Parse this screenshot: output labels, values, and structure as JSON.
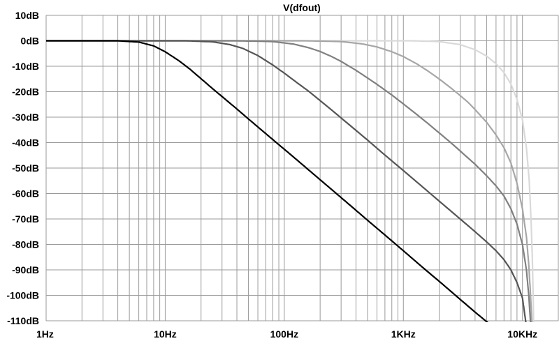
{
  "chart_data": {
    "type": "line",
    "title": "V(dfout)",
    "x_scale": "log",
    "xlim": [
      1,
      20000
    ],
    "ylim": [
      -110,
      10
    ],
    "grid": true,
    "x_tick_labels": [
      {
        "value": 1,
        "label": "1Hz"
      },
      {
        "value": 10,
        "label": "10Hz"
      },
      {
        "value": 100,
        "label": "100Hz"
      },
      {
        "value": 1000,
        "label": "1KHz"
      },
      {
        "value": 10000,
        "label": "10KHz"
      }
    ],
    "y_tick_labels": [
      {
        "value": 10,
        "label": "10dB"
      },
      {
        "value": 0,
        "label": "0dB"
      },
      {
        "value": -10,
        "label": "-10dB"
      },
      {
        "value": -20,
        "label": "-20dB"
      },
      {
        "value": -30,
        "label": "-30dB"
      },
      {
        "value": -40,
        "label": "-40dB"
      },
      {
        "value": -50,
        "label": "-50dB"
      },
      {
        "value": -60,
        "label": "-60dB"
      },
      {
        "value": -70,
        "label": "-70dB"
      },
      {
        "value": -80,
        "label": "-80dB"
      },
      {
        "value": -90,
        "label": "-90dB"
      },
      {
        "value": -100,
        "label": "-100dB"
      },
      {
        "value": -110,
        "label": "-110dB"
      }
    ],
    "series": [
      {
        "color": "#000000",
        "points": [
          [
            1,
            0
          ],
          [
            4,
            0
          ],
          [
            6,
            -0.5
          ],
          [
            8,
            -2
          ],
          [
            10,
            -4.3
          ],
          [
            13,
            -7.8
          ],
          [
            16,
            -11
          ],
          [
            20,
            -14.9
          ],
          [
            25,
            -18.8
          ],
          [
            30,
            -21.9
          ],
          [
            40,
            -26.8
          ],
          [
            50,
            -30.7
          ],
          [
            70,
            -36.5
          ],
          [
            100,
            -42.6
          ],
          [
            150,
            -49.6
          ],
          [
            200,
            -54.6
          ],
          [
            300,
            -61.6
          ],
          [
            400,
            -66.6
          ],
          [
            500,
            -70.5
          ],
          [
            700,
            -76.3
          ],
          [
            1000,
            -82.5
          ],
          [
            1500,
            -89.6
          ],
          [
            2000,
            -94.5
          ],
          [
            3000,
            -101.6
          ],
          [
            4000,
            -106.6
          ],
          [
            5200,
            -111
          ]
        ]
      },
      {
        "color": "#555555",
        "points": [
          [
            1,
            0
          ],
          [
            15,
            0
          ],
          [
            25,
            -0.4
          ],
          [
            35,
            -1.5
          ],
          [
            45,
            -3
          ],
          [
            60,
            -5.8
          ],
          [
            80,
            -9.5
          ],
          [
            100,
            -12.7
          ],
          [
            130,
            -16.7
          ],
          [
            160,
            -19.8
          ],
          [
            200,
            -23.5
          ],
          [
            250,
            -27.2
          ],
          [
            300,
            -30.3
          ],
          [
            400,
            -35.2
          ],
          [
            500,
            -39
          ],
          [
            700,
            -44.9
          ],
          [
            1000,
            -51
          ],
          [
            1500,
            -58
          ],
          [
            2000,
            -63
          ],
          [
            3000,
            -70
          ],
          [
            4000,
            -75
          ],
          [
            5000,
            -79
          ],
          [
            6000,
            -82.5
          ],
          [
            7000,
            -86
          ],
          [
            8000,
            -90
          ],
          [
            9000,
            -95
          ],
          [
            10000,
            -101
          ],
          [
            10700,
            -111
          ]
        ]
      },
      {
        "color": "#808080",
        "points": [
          [
            1,
            0
          ],
          [
            40,
            0
          ],
          [
            80,
            -0.3
          ],
          [
            120,
            -1.3
          ],
          [
            160,
            -2.7
          ],
          [
            200,
            -4.2
          ],
          [
            250,
            -6.2
          ],
          [
            300,
            -8.1
          ],
          [
            400,
            -11.6
          ],
          [
            500,
            -14.6
          ],
          [
            600,
            -17.1
          ],
          [
            800,
            -21.3
          ],
          [
            1000,
            -24.8
          ],
          [
            1300,
            -29
          ],
          [
            1600,
            -32.4
          ],
          [
            2000,
            -36.2
          ],
          [
            2500,
            -40
          ],
          [
            3000,
            -43.3
          ],
          [
            4000,
            -48.5
          ],
          [
            5000,
            -53
          ],
          [
            6000,
            -57
          ],
          [
            7000,
            -61
          ],
          [
            8000,
            -66
          ],
          [
            9000,
            -72
          ],
          [
            10000,
            -80
          ],
          [
            10800,
            -90
          ],
          [
            11300,
            -100
          ],
          [
            11700,
            -111
          ]
        ]
      },
      {
        "color": "#a6a6a6",
        "points": [
          [
            1,
            0
          ],
          [
            150,
            0
          ],
          [
            300,
            -0.3
          ],
          [
            450,
            -1.2
          ],
          [
            600,
            -2.4
          ],
          [
            800,
            -4.3
          ],
          [
            1000,
            -6.2
          ],
          [
            1300,
            -9.1
          ],
          [
            1600,
            -11.8
          ],
          [
            2000,
            -15
          ],
          [
            2500,
            -18.5
          ],
          [
            3000,
            -21.5
          ],
          [
            3500,
            -24.2
          ],
          [
            4000,
            -27
          ],
          [
            5000,
            -32
          ],
          [
            6000,
            -37
          ],
          [
            7000,
            -42
          ],
          [
            8000,
            -48
          ],
          [
            9000,
            -56
          ],
          [
            10000,
            -66
          ],
          [
            10800,
            -77
          ],
          [
            11300,
            -88
          ],
          [
            11700,
            -100
          ],
          [
            12000,
            -111
          ]
        ]
      },
      {
        "color": "#d9d9d9",
        "points": [
          [
            1,
            0
          ],
          [
            1200,
            0
          ],
          [
            2000,
            -0.3
          ],
          [
            3000,
            -1.5
          ],
          [
            4000,
            -3.5
          ],
          [
            5000,
            -6
          ],
          [
            6000,
            -9
          ],
          [
            7000,
            -12.5
          ],
          [
            8000,
            -17
          ],
          [
            9000,
            -23
          ],
          [
            10000,
            -31
          ],
          [
            10800,
            -42
          ],
          [
            11400,
            -55
          ],
          [
            11800,
            -70
          ],
          [
            12100,
            -85
          ],
          [
            12300,
            -100
          ],
          [
            12400,
            -111
          ]
        ]
      }
    ]
  }
}
